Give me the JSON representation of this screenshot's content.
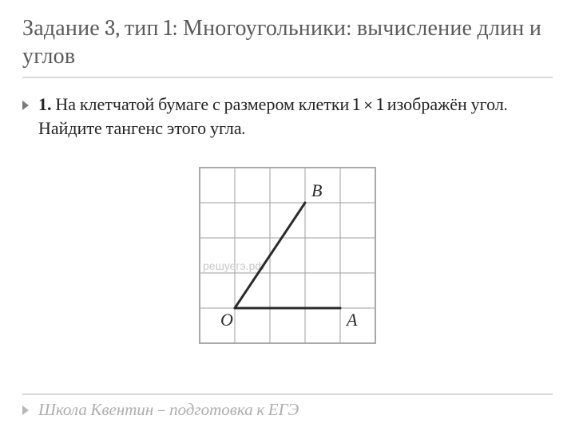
{
  "title": "Задание 3, тип 1: Многоугольники: вычисление длин и углов",
  "problem": {
    "number": "1.",
    "text_part1": " На клетчатой бумаге с размером клетки 1 ",
    "times": "×",
    "text_part2": " 1 изображён угол. Найдите тангенс этого угла."
  },
  "diagram": {
    "grid": {
      "cols": 5,
      "rows": 5,
      "cell": 44
    },
    "outer_border_color": "#a9a9a9",
    "grid_line_color": "#9f9f9f",
    "grid_line_width": 1,
    "angle_line_color": "#2b2b2b",
    "angle_line_width": 3,
    "points": {
      "O": {
        "gx": 1,
        "gy": 4,
        "label": "O",
        "label_dx": -18,
        "label_dy": 22
      },
      "A": {
        "gx": 4,
        "gy": 4,
        "label": "A",
        "label_dx": 8,
        "label_dy": 22
      },
      "B": {
        "gx": 3,
        "gy": 1,
        "label": "B",
        "label_dx": 8,
        "label_dy": -8
      }
    },
    "watermark": "решуегэ.рф"
  },
  "footer": "Школа Квентин – подготовка к ЕГЭ"
}
